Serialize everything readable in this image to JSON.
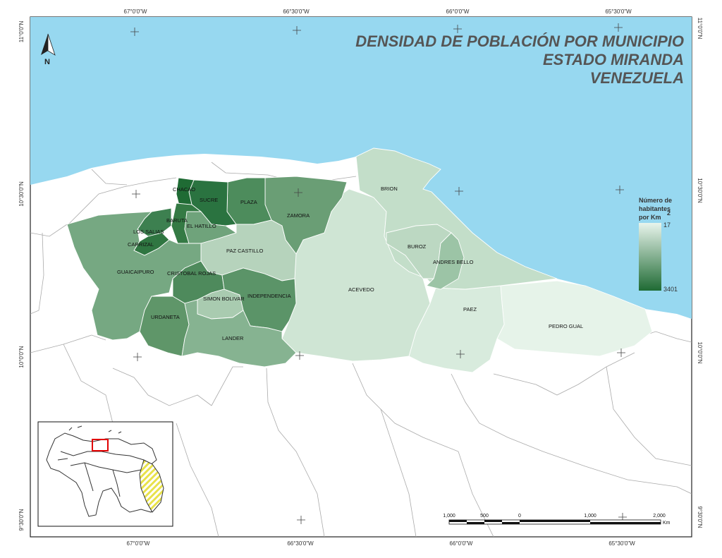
{
  "title": {
    "line1": "DENSIDAD DE POBLACIÓN POR MUNICIPIO",
    "line2": "ESTADO MIRANDA",
    "line3": "VENEZUELA"
  },
  "north_arrow": {
    "label": "N"
  },
  "graticule": {
    "top": [
      "67°0'0\"W",
      "66°30'0\"W",
      "66°0'0\"W",
      "65°30'0\"W"
    ],
    "bottom": [
      "67°0'0\"W",
      "66°30'0\"W",
      "66°0'0\"W",
      "65°30'0\"W"
    ],
    "left": [
      "11°0'0\"N",
      "10°30'0\"N",
      "10°0'0\"N",
      "9°30'0\"N"
    ],
    "right": [
      "11°0'0\"N",
      "10°30'0\"N",
      "10°0'0\"N",
      "9°30'0\"N"
    ]
  },
  "legend": {
    "title_line1": "Número de",
    "title_line2": "habitantes",
    "title_line3": "por Km",
    "title_sup": "2",
    "max_label": "17",
    "min_label": "3401",
    "color_low": "#e8f4ec",
    "color_high": "#1f6b34"
  },
  "municipalities": [
    {
      "name": "CHACAO",
      "color": "#1f6b34"
    },
    {
      "name": "SUCRE",
      "color": "#2a7340"
    },
    {
      "name": "PLAZA",
      "color": "#4d8c5c"
    },
    {
      "name": "ZAMORA",
      "color": "#6a9e75"
    },
    {
      "name": "BRION",
      "color": "#c3dec9"
    },
    {
      "name": "BARUTA",
      "color": "#347a44"
    },
    {
      "name": "EL HATILLO",
      "color": "#6fa37b"
    },
    {
      "name": "LOS SALIAS",
      "color": "#3d8050"
    },
    {
      "name": "CARRIZAL",
      "color": "#2f7641"
    },
    {
      "name": "PAZ CASTILLO",
      "color": "#b6d3bc"
    },
    {
      "name": "BUROZ",
      "color": "#bcd8c2"
    },
    {
      "name": "ANDRES BELLO",
      "color": "#9cc4a6"
    },
    {
      "name": "GUAICAIPURO",
      "color": "#76a882"
    },
    {
      "name": "CRISTOBAL ROJAS",
      "color": "#4e8a5c"
    },
    {
      "name": "SIMON BOLIVAR",
      "color": "#a9cbb0"
    },
    {
      "name": "INDEPENDENCIA",
      "color": "#5b9468"
    },
    {
      "name": "ACEVEDO",
      "color": "#cfe5d4"
    },
    {
      "name": "URDANETA",
      "color": "#5f9669"
    },
    {
      "name": "LANDER",
      "color": "#86b391"
    },
    {
      "name": "PAEZ",
      "color": "#d8ebdd"
    },
    {
      "name": "PEDRO GUAL",
      "color": "#e6f3e9"
    }
  ],
  "scale_bar": {
    "labels": [
      "1,000",
      "500",
      "0",
      "1,000",
      "2,000"
    ],
    "unit": "Km"
  },
  "colors": {
    "sea": "#97d8f0",
    "land": "#ffffff",
    "border": "#999999",
    "inset_highlight": "#e00000",
    "inset_hatch": "#e8e24a"
  }
}
